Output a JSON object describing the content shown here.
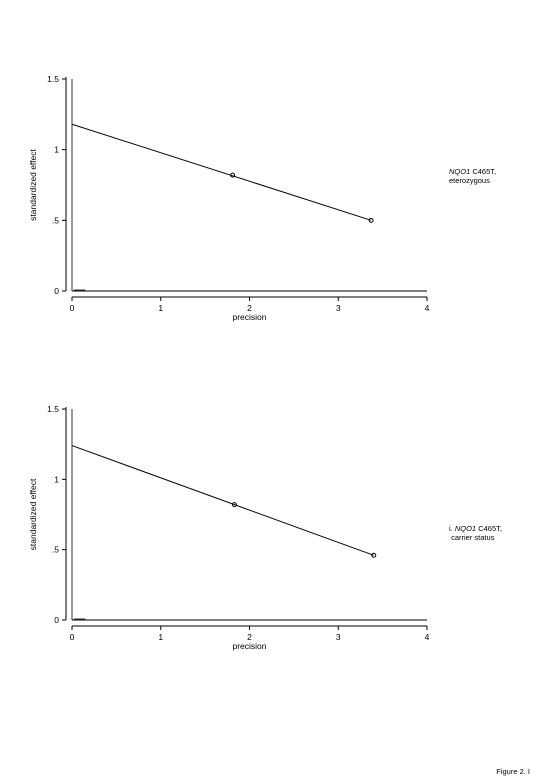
{
  "chart_data": [
    {
      "type": "line",
      "xlabel": "precision",
      "ylabel": "standardized effect",
      "xlim": [
        0,
        4
      ],
      "ylim": [
        0,
        1.5
      ],
      "x_ticks": [
        "0",
        "1",
        "2",
        "3",
        "4"
      ],
      "y_ticks": [
        "0",
        ".5",
        "1",
        "1.5"
      ],
      "x_tick_values": [
        0,
        1,
        2,
        3,
        4
      ],
      "y_tick_values": [
        0,
        0.5,
        1,
        1.5
      ],
      "regression_line": {
        "x": [
          0,
          3.37
        ],
        "y": [
          1.18,
          0.5
        ]
      },
      "points": [
        {
          "x": 1.81,
          "y": 0.82
        },
        {
          "x": 3.37,
          "y": 0.5
        }
      ],
      "annotation": {
        "gene": "NQO1",
        "rest_line1": " C465T,",
        "line2": "eterozygous"
      }
    },
    {
      "type": "line",
      "xlabel": "precision",
      "ylabel": "standardized effect",
      "xlim": [
        0,
        4
      ],
      "ylim": [
        0,
        1.5
      ],
      "x_ticks": [
        "0",
        "1",
        "2",
        "3",
        "4"
      ],
      "y_ticks": [
        "0",
        ".5",
        "1",
        "1.5"
      ],
      "x_tick_values": [
        0,
        1,
        2,
        3,
        4
      ],
      "y_tick_values": [
        0,
        0.5,
        1,
        1.5
      ],
      "regression_line": {
        "x": [
          0,
          3.4
        ],
        "y": [
          1.24,
          0.46
        ]
      },
      "points": [
        {
          "x": 1.83,
          "y": 0.82
        },
        {
          "x": 3.4,
          "y": 0.46
        }
      ],
      "annotation": {
        "prefix": "i. ",
        "gene": "NQO1",
        "rest_line1": " C465T,",
        "line2": " carrier status"
      }
    }
  ],
  "figure_label": "Figure 2. I"
}
